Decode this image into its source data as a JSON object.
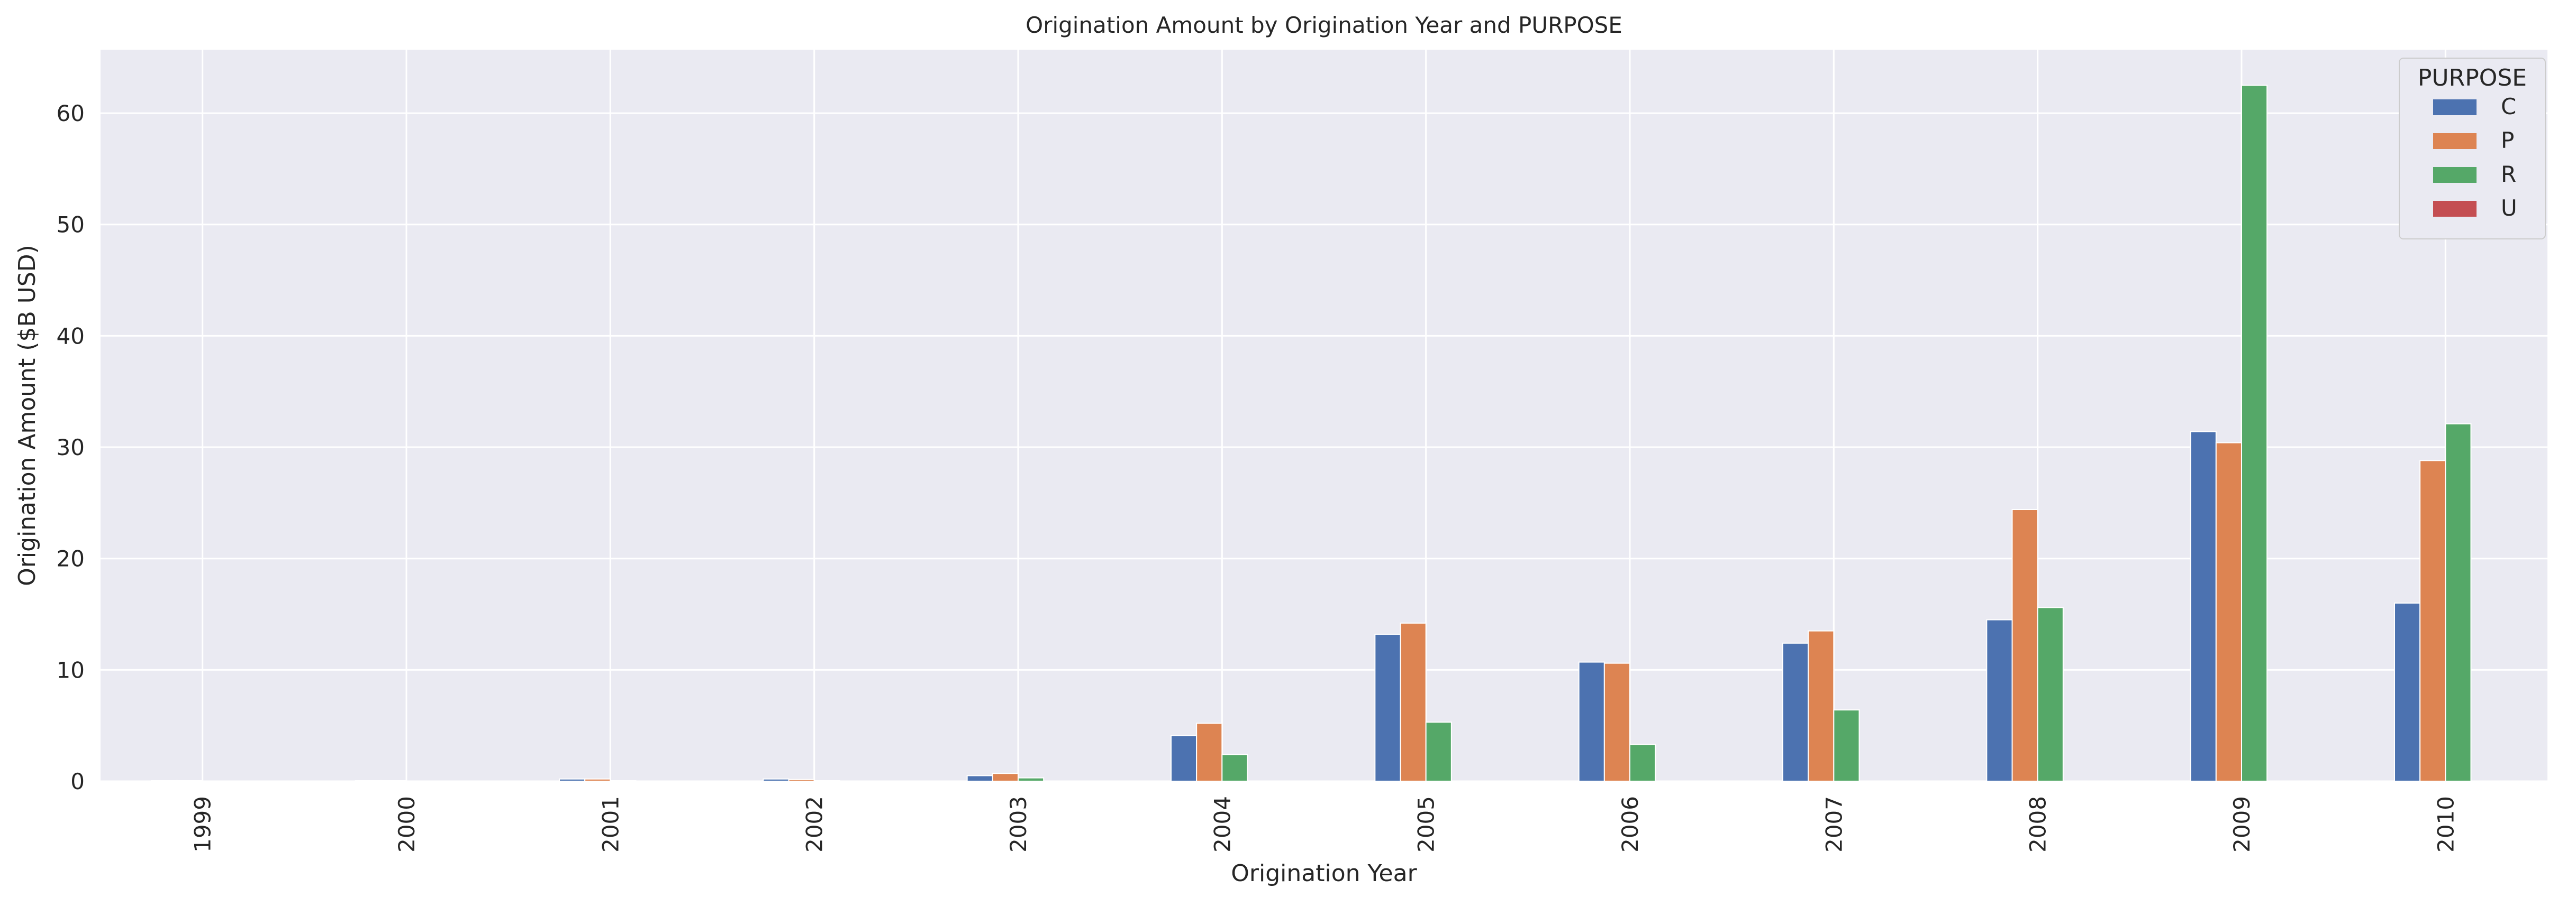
{
  "chart_data": {
    "type": "bar",
    "title": "Origination Amount by Origination Year and PURPOSE",
    "xlabel": "Origination Year",
    "ylabel": "Origination Amount ($B USD)",
    "categories": [
      "1999",
      "2000",
      "2001",
      "2002",
      "2003",
      "2004",
      "2005",
      "2006",
      "2007",
      "2008",
      "2009",
      "2010"
    ],
    "ylim": [
      0,
      65.7
    ],
    "yticks": [
      0,
      10,
      20,
      30,
      40,
      50,
      60
    ],
    "grid": true,
    "legend": {
      "title": "PURPOSE",
      "position": "top-right"
    },
    "series": [
      {
        "name": "C",
        "color": "#4c72b0",
        "values": [
          0.05,
          0.05,
          0.2,
          0.2,
          0.5,
          4.1,
          13.2,
          10.7,
          12.4,
          14.5,
          31.4,
          16.0
        ]
      },
      {
        "name": "P",
        "color": "#dd8452",
        "values": [
          0.05,
          0.05,
          0.2,
          0.15,
          0.7,
          5.2,
          14.2,
          10.6,
          13.5,
          24.4,
          30.4,
          28.8
        ]
      },
      {
        "name": "R",
        "color": "#55a868",
        "values": [
          0.02,
          0.02,
          0.05,
          0.05,
          0.3,
          2.4,
          5.3,
          3.3,
          6.4,
          15.6,
          62.5,
          32.1
        ]
      },
      {
        "name": "U",
        "color": "#c44e52",
        "values": [
          0,
          0,
          0,
          0,
          0,
          0,
          0,
          0,
          0,
          0,
          0,
          0
        ]
      }
    ]
  }
}
